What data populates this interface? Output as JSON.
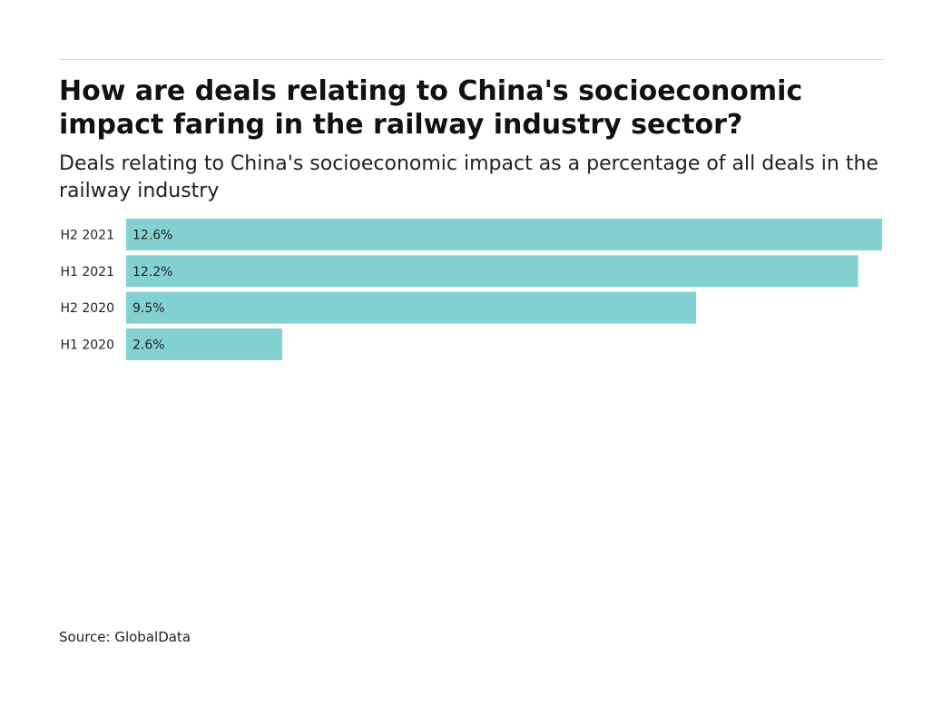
{
  "header": {
    "title": "How are deals relating to China's socioeconomic impact faring in the railway industry sector?",
    "subtitle": "Deals relating to China's socioeconomic impact as a percentage of all deals in the railway industry"
  },
  "footer": {
    "source": "Source: GlobalData"
  },
  "colors": {
    "bar": "#84d1d1"
  },
  "chart_data": {
    "type": "bar",
    "orientation": "horizontal",
    "categories": [
      "H2 2021",
      "H1 2021",
      "H2 2020",
      "H1 2020"
    ],
    "values": [
      12.6,
      12.2,
      9.5,
      2.6
    ],
    "value_labels": [
      "12.6%",
      "12.2%",
      "9.5%",
      "2.6%"
    ],
    "unit": "%",
    "xlim": [
      0,
      12.6
    ],
    "grid": false,
    "legend": "none"
  }
}
